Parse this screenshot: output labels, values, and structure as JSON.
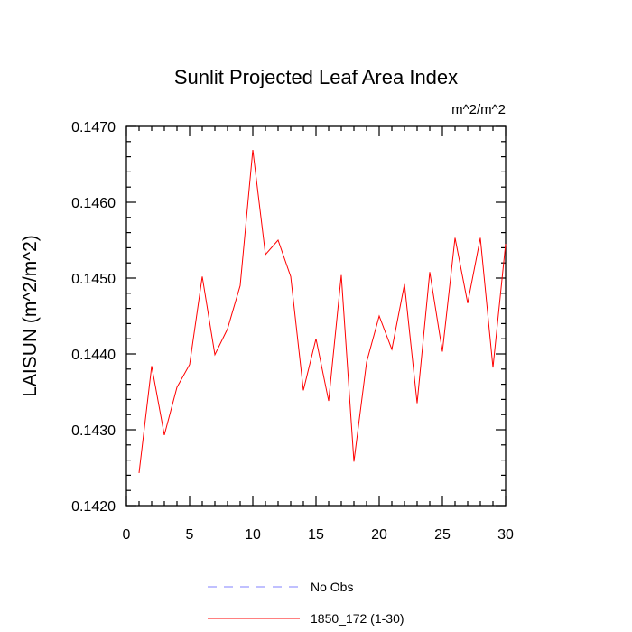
{
  "chart_data": {
    "type": "line",
    "title": "Sunlit Projected Leaf Area Index",
    "units_label": "m^2/m^2",
    "ylabel": "LAISUN  (m^2/m^2)",
    "xlabel": "",
    "xlim": [
      0,
      30
    ],
    "ylim": [
      0.142,
      0.147
    ],
    "x_ticks": [
      0,
      5,
      10,
      15,
      20,
      25,
      30
    ],
    "x_tick_labels": [
      "0",
      "5",
      "10",
      "15",
      "20",
      "25",
      "30"
    ],
    "y_ticks": [
      0.142,
      0.143,
      0.144,
      0.145,
      0.146,
      0.147
    ],
    "y_tick_labels": [
      "0.1420",
      "0.1430",
      "0.1440",
      "0.1450",
      "0.1460",
      "0.1470"
    ],
    "series": [
      {
        "name": "1850_172 (1-30)",
        "color": "#ff0000",
        "style": "solid",
        "x": [
          1,
          2,
          3,
          4,
          5,
          6,
          7,
          8,
          9,
          10,
          11,
          12,
          13,
          14,
          15,
          16,
          17,
          18,
          19,
          20,
          21,
          22,
          23,
          24,
          25,
          26,
          27,
          28,
          29,
          30
        ],
        "values": [
          0.14243,
          0.14384,
          0.14293,
          0.14356,
          0.14386,
          0.14502,
          0.14399,
          0.14433,
          0.1449,
          0.14669,
          0.14531,
          0.1455,
          0.14502,
          0.14352,
          0.1442,
          0.14338,
          0.14504,
          0.14258,
          0.14389,
          0.1445,
          0.14406,
          0.14492,
          0.14335,
          0.14508,
          0.14403,
          0.14553,
          0.14467,
          0.14553,
          0.14382,
          0.14545
        ]
      }
    ],
    "legend": [
      {
        "label": "No Obs",
        "color": "#8080ff",
        "style": "dashed"
      },
      {
        "label": "1850_172 (1-30)",
        "color": "#ff0000",
        "style": "solid"
      }
    ]
  }
}
